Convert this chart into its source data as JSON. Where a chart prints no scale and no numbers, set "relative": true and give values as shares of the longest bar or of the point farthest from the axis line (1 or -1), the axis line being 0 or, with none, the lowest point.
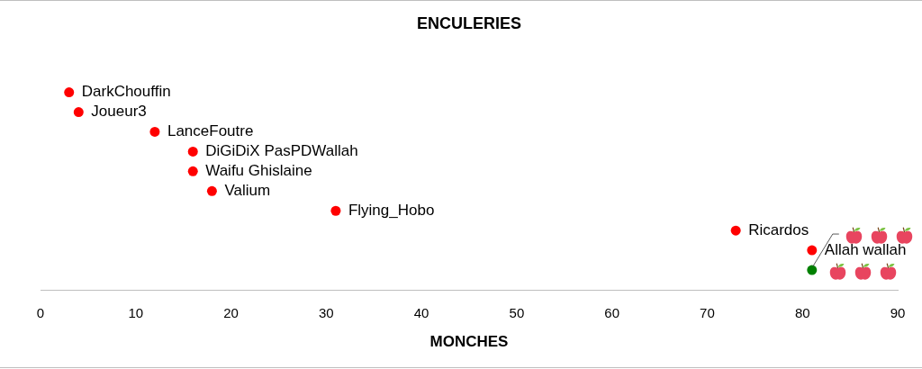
{
  "chart_data": {
    "type": "scatter",
    "title": "ENCULERIES",
    "xlabel": "MONCHES",
    "x": [
      3,
      4,
      12,
      16,
      16,
      18,
      31,
      73,
      81,
      81
    ],
    "values": [
      1,
      0.9,
      0.8,
      0.7,
      0.6,
      0.5,
      0.4,
      0.3,
      0.2,
      0.1
    ],
    "colors": [
      "#ff0000",
      "#ff0000",
      "#ff0000",
      "#ff0000",
      "#ff0000",
      "#ff0000",
      "#ff0000",
      "#ff0000",
      "#ff0000",
      "#008000"
    ],
    "relative": true,
    "xlim": [
      0,
      90
    ],
    "xticks": [
      0,
      10,
      20,
      30,
      40,
      50,
      60,
      70,
      80,
      90
    ],
    "marker": "circle",
    "annotations": [
      {
        "text": "DarkChouffin",
        "x": 3,
        "y": 1
      },
      {
        "text": "Joueur3",
        "x": 4,
        "y": 0.9
      },
      {
        "text": "LanceFoutre",
        "x": 12,
        "y": 0.8
      },
      {
        "text": "DiGiDiX PasPDWallah",
        "x": 16,
        "y": 0.7
      },
      {
        "text": "Waifu Ghislaine",
        "x": 16,
        "y": 0.6
      },
      {
        "text": "Valium",
        "x": 18,
        "y": 0.5
      },
      {
        "text": "Flying_Hobo",
        "x": 31,
        "y": 0.4
      },
      {
        "text": "Ricardos",
        "x": 73,
        "y": 0.3
      },
      {
        "text": "Allah wallah",
        "x": 81,
        "y": 0.2
      }
    ]
  }
}
